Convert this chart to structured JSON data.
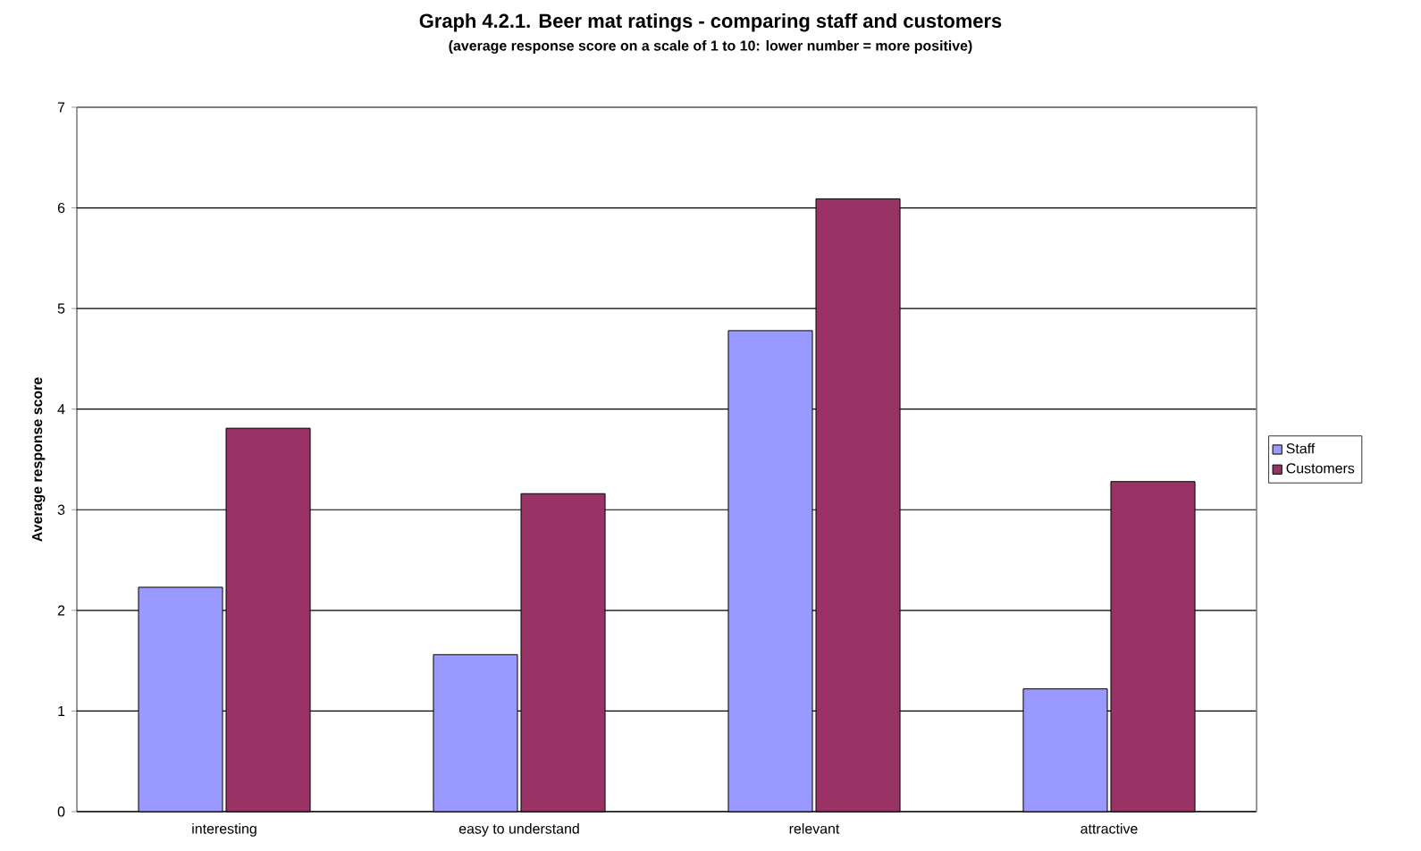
{
  "chart_data": {
    "type": "bar",
    "title": "Graph 4.2.1. Beer mat ratings - comparing staff and customers",
    "subtitle": "(average response score on a scale of 1 to 10: lower number = more positive)",
    "ylabel": "Average response score",
    "categories": [
      "interesting",
      "easy to understand",
      "relevant",
      "attractive"
    ],
    "series": [
      {
        "name": "Staff",
        "color": "#9999ff",
        "values": [
          2.23,
          1.56,
          4.78,
          1.22
        ]
      },
      {
        "name": "Customers",
        "color": "#993366",
        "values": [
          3.81,
          3.16,
          6.09,
          3.28
        ]
      }
    ],
    "ylim": [
      0,
      7
    ],
    "yticks": [
      0,
      1,
      2,
      3,
      4,
      5,
      6,
      7
    ],
    "grid": "y",
    "legend": "right"
  }
}
